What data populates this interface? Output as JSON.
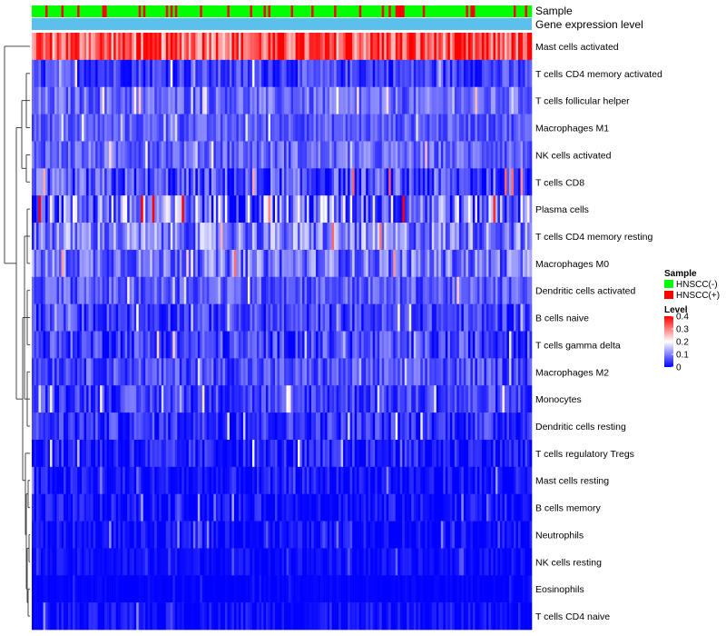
{
  "chart_data": {
    "type": "heatmap",
    "title": "",
    "annotation_rows": [
      "Sample",
      "Gene expression level"
    ],
    "rows": [
      {
        "name": "Mast cells activated",
        "mean": 0.33,
        "var": 0.1
      },
      {
        "name": "T cells CD4 memory activated",
        "mean": 0.05,
        "var": 0.05
      },
      {
        "name": "T cells follicular helper",
        "mean": 0.08,
        "var": 0.05
      },
      {
        "name": "Macrophages M1",
        "mean": 0.07,
        "var": 0.04
      },
      {
        "name": "NK cells activated",
        "mean": 0.08,
        "var": 0.05
      },
      {
        "name": "T cells CD8",
        "mean": 0.05,
        "var": 0.08
      },
      {
        "name": "Plasma cells",
        "mean": 0.1,
        "var": 0.12
      },
      {
        "name": "T cells CD4 memory resting",
        "mean": 0.1,
        "var": 0.08
      },
      {
        "name": "Macrophages M0",
        "mean": 0.09,
        "var": 0.07
      },
      {
        "name": "Dendritic cells activated",
        "mean": 0.07,
        "var": 0.05
      },
      {
        "name": "B cells naive",
        "mean": 0.05,
        "var": 0.05
      },
      {
        "name": "T cells gamma delta",
        "mean": 0.05,
        "var": 0.06
      },
      {
        "name": "Macrophages M2",
        "mean": 0.06,
        "var": 0.05
      },
      {
        "name": "Monocytes",
        "mean": 0.05,
        "var": 0.05
      },
      {
        "name": "Dendritic cells resting",
        "mean": 0.04,
        "var": 0.05
      },
      {
        "name": "T cells regulatory  Tregs",
        "mean": 0.02,
        "var": 0.05
      },
      {
        "name": "Mast cells resting",
        "mean": 0.01,
        "var": 0.04
      },
      {
        "name": "B cells memory",
        "mean": 0.01,
        "var": 0.04
      },
      {
        "name": "Neutrophils",
        "mean": 0.01,
        "var": 0.03
      },
      {
        "name": "NK cells resting",
        "mean": 0.01,
        "var": 0.02
      },
      {
        "name": "Eosinophils",
        "mean": 0.0,
        "var": 0.01
      },
      {
        "name": "T cells CD4 naive",
        "mean": 0.01,
        "var": 0.03
      }
    ],
    "n_samples": 220,
    "sample_groups": [
      "HNSCC(-)",
      "HNSCC(+)"
    ],
    "sample_group_fraction_positive": 0.2,
    "color_scale": {
      "min": 0,
      "max": 0.4,
      "ticks": [
        0.4,
        0.3,
        0.2,
        0.1,
        0
      ],
      "tick_labels": [
        "0.4",
        "0.3",
        "0.2",
        "0.1",
        "0"
      ],
      "low_color": "#0000ff",
      "mid_color": "#ffffff",
      "high_color": "#ff0000"
    },
    "legend": {
      "sample_title": "Sample",
      "sample_entries": [
        {
          "label": "HNSCC(-)",
          "color": "#00ff00"
        },
        {
          "label": "HNSCC(+)",
          "color": "#ff0000"
        }
      ],
      "level_title": "Level",
      "placement": "right"
    },
    "gene_expression_color": "#5bc0eb"
  }
}
